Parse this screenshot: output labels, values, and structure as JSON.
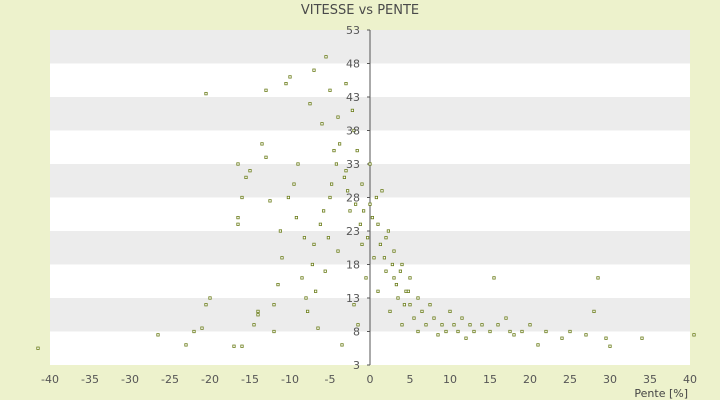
{
  "chart_data": {
    "type": "scatter",
    "title": "VITESSE vs PENTE",
    "xlabel": "Pente [%]",
    "ylabel": "",
    "xlim": [
      -40,
      40
    ],
    "ylim": [
      3,
      53
    ],
    "x_ticks": [
      "-40",
      "-35",
      "-30",
      "-25",
      "-20",
      "-15",
      "-10",
      "-5",
      "0",
      "5",
      "10",
      "15",
      "20",
      "25",
      "30",
      "35",
      "40"
    ],
    "y_ticks": [
      "3",
      "8",
      "13",
      "18",
      "23",
      "28",
      "33",
      "38",
      "43",
      "48",
      "53"
    ],
    "grid": "horizontal bands",
    "legend": "none",
    "colors": {
      "marker": "#6b7d1a",
      "band_light": "#ffffff",
      "band_dark": "#ececec",
      "axis": "#555555"
    },
    "series": [
      {
        "values": [
          [
            -41.5,
            5.5
          ],
          [
            -26.5,
            7.5
          ],
          [
            -23,
            6
          ],
          [
            -22,
            8
          ],
          [
            -21,
            8.5
          ],
          [
            -20.5,
            12
          ],
          [
            -20,
            13
          ],
          [
            -20.5,
            43.5
          ],
          [
            -17,
            5.8
          ],
          [
            -16,
            5.8
          ],
          [
            -16.5,
            24
          ],
          [
            -16.5,
            25
          ],
          [
            -16,
            28
          ],
          [
            -16.5,
            33
          ],
          [
            -15.5,
            31
          ],
          [
            -15,
            32
          ],
          [
            -14.5,
            9
          ],
          [
            -14,
            10.5
          ],
          [
            -14,
            11
          ],
          [
            -13.5,
            36
          ],
          [
            -13,
            34
          ],
          [
            -13,
            44
          ],
          [
            -12.5,
            27.5
          ],
          [
            -12,
            8
          ],
          [
            -12,
            12
          ],
          [
            -11.5,
            15
          ],
          [
            -11,
            19
          ],
          [
            -10.5,
            45
          ],
          [
            -10,
            46
          ],
          [
            -9.5,
            30
          ],
          [
            -9,
            33
          ],
          [
            -8.5,
            16
          ],
          [
            -8,
            13
          ],
          [
            -7.5,
            42
          ],
          [
            -7,
            47
          ],
          [
            -7,
            21
          ],
          [
            -6.5,
            8.5
          ],
          [
            -6,
            39
          ],
          [
            -5.5,
            49
          ],
          [
            -5,
            44
          ],
          [
            -5,
            28
          ],
          [
            -4.5,
            35
          ],
          [
            -4,
            40
          ],
          [
            -4,
            20
          ],
          [
            -3.5,
            6
          ],
          [
            -3,
            45
          ],
          [
            -3,
            32
          ],
          [
            -2.5,
            26
          ],
          [
            -2,
            12
          ],
          [
            -2,
            38
          ],
          [
            -1.5,
            9
          ],
          [
            -1,
            30
          ],
          [
            -1,
            21
          ],
          [
            -0.5,
            16
          ],
          [
            0,
            27
          ],
          [
            0,
            33
          ],
          [
            0.5,
            19
          ],
          [
            1,
            24
          ],
          [
            1,
            14
          ],
          [
            1.5,
            29
          ],
          [
            2,
            17
          ],
          [
            2,
            22
          ],
          [
            2.5,
            11
          ],
          [
            3,
            20
          ],
          [
            3,
            16
          ],
          [
            3.5,
            13
          ],
          [
            4,
            18
          ],
          [
            4,
            9
          ],
          [
            4.5,
            14
          ],
          [
            5,
            12
          ],
          [
            5,
            16
          ],
          [
            5.5,
            10
          ],
          [
            6,
            13
          ],
          [
            6,
            8
          ],
          [
            6.5,
            11
          ],
          [
            7,
            9
          ],
          [
            7.5,
            12
          ],
          [
            8,
            10
          ],
          [
            8.5,
            7.5
          ],
          [
            9,
            9
          ],
          [
            9.5,
            8
          ],
          [
            10,
            11
          ],
          [
            10.5,
            9
          ],
          [
            11,
            8
          ],
          [
            11.5,
            10
          ],
          [
            12,
            7
          ],
          [
            12.5,
            9
          ],
          [
            13,
            8
          ],
          [
            14,
            9
          ],
          [
            15,
            8
          ],
          [
            15.5,
            16
          ],
          [
            16,
            9
          ],
          [
            17,
            10
          ],
          [
            17.5,
            8
          ],
          [
            18,
            7.5
          ],
          [
            19,
            8
          ],
          [
            20,
            9
          ],
          [
            21,
            6
          ],
          [
            22,
            8
          ],
          [
            24,
            7
          ],
          [
            25,
            8
          ],
          [
            27,
            7.5
          ],
          [
            28,
            11
          ],
          [
            28.5,
            16
          ],
          [
            29.5,
            7
          ],
          [
            30,
            5.8
          ],
          [
            34,
            7
          ],
          [
            40.5,
            7.5
          ],
          [
            -3.2,
            31
          ],
          [
            -2.8,
            29
          ],
          [
            -1.8,
            27
          ],
          [
            -1.2,
            24
          ],
          [
            -0.8,
            26
          ],
          [
            -0.3,
            22
          ],
          [
            0.3,
            25
          ],
          [
            0.8,
            28
          ],
          [
            1.3,
            21
          ],
          [
            1.8,
            19
          ],
          [
            2.3,
            23
          ],
          [
            2.8,
            18
          ],
          [
            3.3,
            15
          ],
          [
            3.8,
            17
          ],
          [
            4.3,
            12
          ],
          [
            4.8,
            14
          ],
          [
            -6.2,
            24
          ],
          [
            -5.8,
            26
          ],
          [
            -5.2,
            22
          ],
          [
            -4.8,
            30
          ],
          [
            -4.2,
            33
          ],
          [
            -3.8,
            36
          ],
          [
            -2.2,
            41
          ],
          [
            -1.6,
            35
          ],
          [
            -7.2,
            18
          ],
          [
            -8.2,
            22
          ],
          [
            -9.2,
            25
          ],
          [
            -10.2,
            28
          ],
          [
            -11.2,
            23
          ],
          [
            -6.8,
            14
          ],
          [
            -7.8,
            11
          ],
          [
            -5.6,
            17
          ]
        ]
      }
    ]
  }
}
